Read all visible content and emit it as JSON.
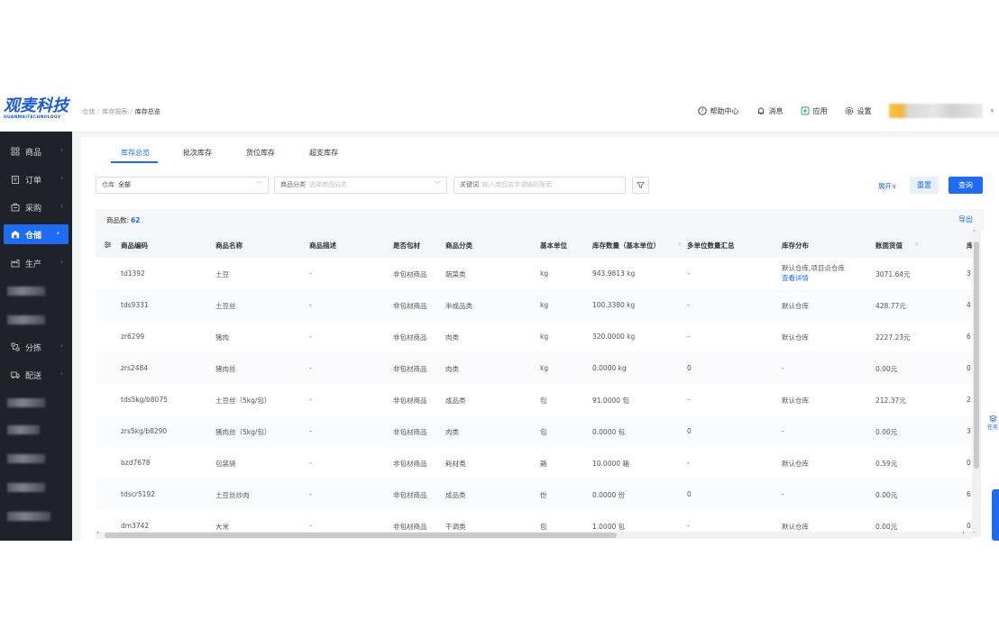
{
  "logo": {
    "main": "观麦科技",
    "sub": "GUANMAITECHNOLOGY"
  },
  "breadcrumb": [
    "仓储",
    "库存报表",
    "库存总览"
  ],
  "topbar": {
    "help": "帮助中心",
    "messages": "消息",
    "apps": "应用",
    "settings": "设置"
  },
  "sidebar": {
    "items": [
      {
        "label": "商品",
        "icon": "grid-icon"
      },
      {
        "label": "订单",
        "icon": "clipboard-icon"
      },
      {
        "label": "采购",
        "icon": "cart-icon"
      },
      {
        "label": "仓储",
        "icon": "warehouse-icon",
        "active": true
      },
      {
        "label": "生产",
        "icon": "factory-icon"
      },
      {
        "label": "分拣",
        "icon": "sort-icon"
      },
      {
        "label": "配送",
        "icon": "truck-icon"
      }
    ]
  },
  "tabs": [
    "库存总览",
    "批次库存",
    "货位库存",
    "超支库存"
  ],
  "filters": {
    "warehouse_label": "仓库",
    "warehouse_value": "全部",
    "category_label": "商品分类",
    "category_placeholder": "选择商品分类",
    "keyword_label": "关键词",
    "keyword_placeholder": "输入商品名字或编码搜索",
    "expand": "展开∨",
    "reset": "重置",
    "query": "查询"
  },
  "summary": {
    "count_label": "商品数:",
    "count": "62",
    "export": "导出"
  },
  "table": {
    "columns": [
      "商品编码",
      "商品名称",
      "商品描述",
      "是否包材",
      "商品分类",
      "基本单位",
      "库存数量（基本单位）",
      "多单位数量汇总",
      "库存分布",
      "账面货值",
      "库"
    ],
    "rows": [
      {
        "code": "td1392",
        "name": "土豆",
        "desc": "-",
        "pack": "非包材商品",
        "cat": "蔬菜类",
        "unit": "kg",
        "qty": "943.9813 kg",
        "multi": "-",
        "dist": "默认仓库,项目点仓库",
        "dist_link": "查看详情",
        "value": "3071.64元",
        "extra": "3"
      },
      {
        "code": "tds9331",
        "name": "土豆丝",
        "desc": "-",
        "pack": "非包材商品",
        "cat": "半成品类",
        "unit": "kg",
        "qty": "100.3380 kg",
        "multi": "-",
        "dist": "默认仓库",
        "dist_link": "",
        "value": "428.77元",
        "extra": "4"
      },
      {
        "code": "zr6299",
        "name": "猪肉",
        "desc": "-",
        "pack": "非包材商品",
        "cat": "肉类",
        "unit": "kg",
        "qty": "320.0000 kg",
        "multi": "-",
        "dist": "默认仓库",
        "dist_link": "",
        "value": "2227.23元",
        "extra": "6"
      },
      {
        "code": "zrs2484",
        "name": "猪肉丝",
        "desc": "-",
        "pack": "非包材商品",
        "cat": "肉类",
        "unit": "kg",
        "qty": "0.0000 kg",
        "multi": "0",
        "dist": "-",
        "dist_link": "",
        "value": "0.00元",
        "extra": "0"
      },
      {
        "code": "tds5kg/b8075",
        "name": "土豆丝（5kg/包）",
        "desc": "-",
        "pack": "非包材商品",
        "cat": "成品类",
        "unit": "包",
        "qty": "91.0000 包",
        "multi": "-",
        "dist": "默认仓库",
        "dist_link": "",
        "value": "212.37元",
        "extra": "2"
      },
      {
        "code": "zrs5kg/b8290",
        "name": "猪肉丝（5kg/包）",
        "desc": "-",
        "pack": "非包材商品",
        "cat": "肉类",
        "unit": "包",
        "qty": "0.0000 包",
        "multi": "0",
        "dist": "-",
        "dist_link": "",
        "value": "0.00元",
        "extra": "3"
      },
      {
        "code": "bzd7678",
        "name": "包装袋",
        "desc": "-",
        "pack": "非包材商品",
        "cat": "耗材类",
        "unit": "箱",
        "qty": "10.0000 箱",
        "multi": "-",
        "dist": "默认仓库",
        "dist_link": "",
        "value": "0.59元",
        "extra": "0"
      },
      {
        "code": "tdscr5192",
        "name": "土豆丝炒肉",
        "desc": "-",
        "pack": "非包材商品",
        "cat": "成品类",
        "unit": "份",
        "qty": "0.0000 份",
        "multi": "0",
        "dist": "-",
        "dist_link": "",
        "value": "0.00元",
        "extra": "6"
      },
      {
        "code": "dm3742",
        "name": "大米",
        "desc": "-",
        "pack": "非包材商品",
        "cat": "干调类",
        "unit": "包",
        "qty": "1.0000 包",
        "multi": "-",
        "dist": "默认仓库",
        "dist_link": "",
        "value": "0.00元",
        "extra": "0"
      }
    ]
  },
  "float": {
    "task": "任务"
  },
  "colors": {
    "primary": "#1f6bf1",
    "sidebar": "#1f2329"
  }
}
